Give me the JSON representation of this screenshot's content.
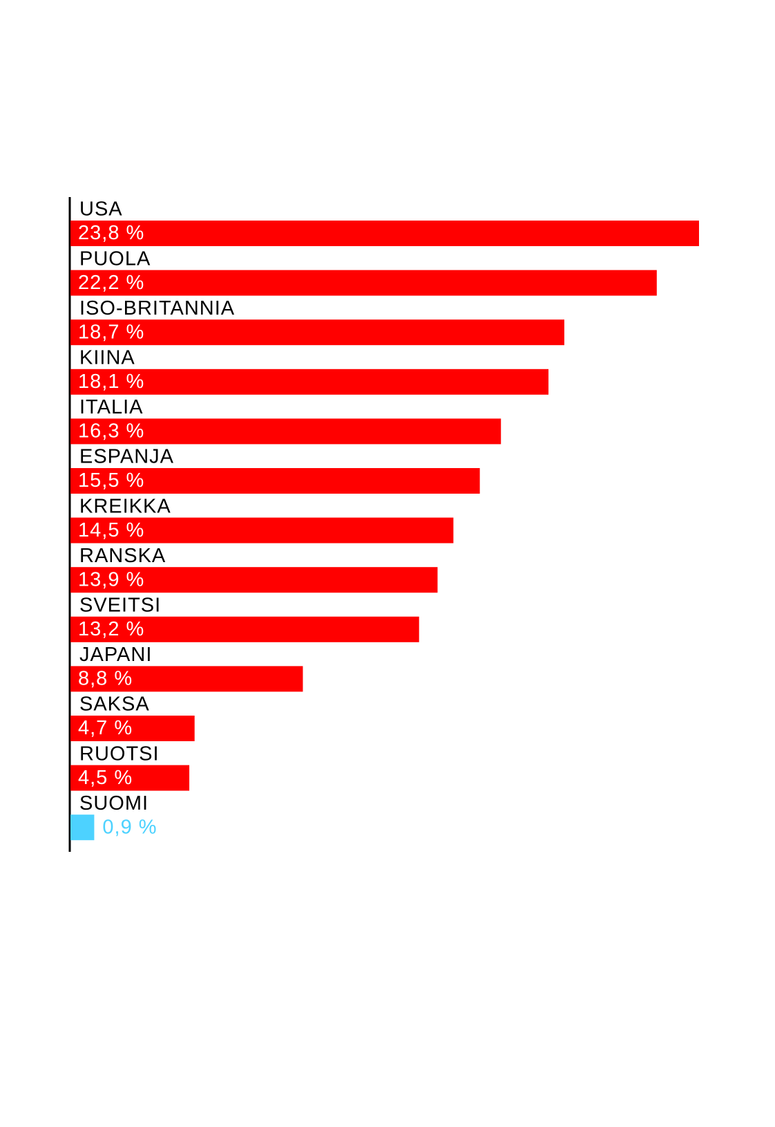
{
  "chart_data": {
    "type": "hbar",
    "categories": [
      "USA",
      "PUOLA",
      "ISO-BRITANNIA",
      "KIINA",
      "ITALIA",
      "ESPANJA",
      "KREIKKA",
      "RANSKA",
      "SVEITSI",
      "JAPANI",
      "SAKSA",
      "RUOTSI",
      "SUOMI"
    ],
    "values": [
      23.8,
      22.2,
      18.7,
      18.1,
      16.3,
      15.5,
      14.5,
      13.9,
      13.2,
      8.8,
      4.7,
      4.5,
      0.9
    ],
    "value_labels": [
      "23,8 %",
      "22,2 %",
      "18,7 %",
      "18,1 %",
      "16,3 %",
      "15,5 %",
      "14,5 %",
      "13,9 %",
      "13,2 %",
      "8,8 %",
      "4,7 %",
      "4,5 %",
      "0,9 %"
    ],
    "colors": [
      "#ff0000",
      "#ff0000",
      "#ff0000",
      "#ff0000",
      "#ff0000",
      "#ff0000",
      "#ff0000",
      "#ff0000",
      "#ff0000",
      "#ff0000",
      "#ff0000",
      "#ff0000",
      "#4dd2ff"
    ]
  }
}
